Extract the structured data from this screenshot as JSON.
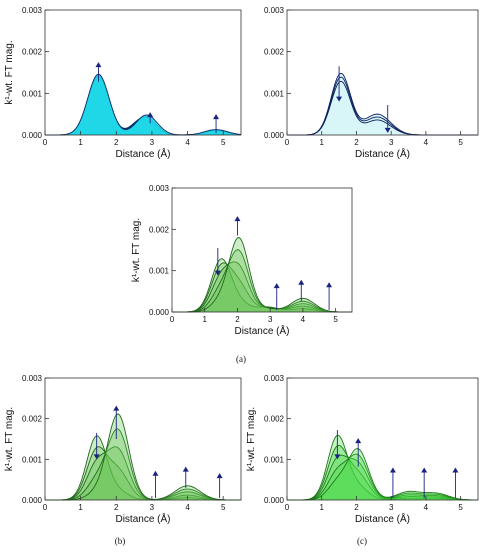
{
  "captions": {
    "a": "(a)",
    "b": "(b)",
    "c": "(c)"
  },
  "colors": {
    "axis": "#333333",
    "arrow": "#1a237e",
    "cyan_fill": "#1ed7e6",
    "cyan_edge": "#0b2d6b",
    "lightcyan_fill": "#d8f4f8",
    "lightcyan_edge": "#0b1f5c",
    "green_fill": "#5cbf4a",
    "green_edge": "#1f6a1a",
    "bright_green_fill": "#40d83a",
    "bright_green_edge": "#1d7b18"
  },
  "chart_data": [
    {
      "id": "top-left",
      "type": "area",
      "xlabel": "Distance (Å)",
      "ylabel": "k¹-wt. FT mag.",
      "xlim": [
        0,
        5.5
      ],
      "ylim": [
        0,
        0.003
      ],
      "xticks": [
        0,
        1,
        2,
        3,
        4,
        5
      ],
      "yticks": [
        "0.000",
        "0.001",
        "0.002",
        "0.003"
      ],
      "style": "cyan",
      "series": [
        {
          "peaks": [
            [
              1.5,
              0.00138,
              0.3
            ],
            [
              2.75,
              0.0004,
              0.3
            ],
            [
              4.8,
              9e-05,
              0.32
            ]
          ]
        },
        {
          "peaks": [
            [
              1.5,
              0.00142,
              0.3
            ],
            [
              2.8,
              0.00044,
              0.3
            ],
            [
              4.8,
              0.00011,
              0.32
            ]
          ]
        },
        {
          "peaks": [
            [
              1.5,
              0.00146,
              0.3
            ],
            [
              2.85,
              0.00048,
              0.3
            ],
            [
              4.8,
              0.00013,
              0.32
            ]
          ]
        }
      ],
      "arrows": [
        {
          "x": 1.5,
          "y_from": 0.00128,
          "y_to": 0.00175
        },
        {
          "x": 2.95,
          "y_from": 0.00028,
          "y_to": 0.00055
        },
        {
          "x": 4.8,
          "y_from": 5e-05,
          "y_to": 0.0005
        }
      ]
    },
    {
      "id": "top-right",
      "type": "area",
      "xlabel": "Distance (Å)",
      "ylabel": "",
      "xlim": [
        0,
        5.5
      ],
      "ylim": [
        0,
        0.003
      ],
      "xticks": [
        0,
        1,
        2,
        3,
        4,
        5
      ],
      "yticks": [
        "0.000",
        "0.001",
        "0.002",
        "0.003"
      ],
      "style": "lightcyan",
      "series": [
        {
          "peaks": [
            [
              1.55,
              0.00147,
              0.28
            ],
            [
              2.6,
              0.0005,
              0.38
            ]
          ]
        },
        {
          "peaks": [
            [
              1.55,
              0.00138,
              0.28
            ],
            [
              2.6,
              0.00043,
              0.38
            ]
          ]
        },
        {
          "peaks": [
            [
              1.55,
              0.00128,
              0.28
            ],
            [
              2.6,
              0.00036,
              0.38
            ]
          ]
        }
      ],
      "arrows": [
        {
          "x": 1.5,
          "y_from": 0.00165,
          "y_to": 0.0008
        },
        {
          "x": 2.9,
          "y_from": 0.00072,
          "y_to": 5e-05
        }
      ]
    },
    {
      "id": "middle",
      "type": "area",
      "xlabel": "Distance (Å)",
      "ylabel": "k¹-wt. FT mag.",
      "xlim": [
        0,
        5.5
      ],
      "ylim": [
        0,
        0.003
      ],
      "xticks": [
        0,
        1,
        2,
        3,
        4,
        5
      ],
      "yticks": [
        "0.000",
        "0.001",
        "0.002",
        "0.003"
      ],
      "style": "green",
      "series": [
        {
          "peaks": [
            [
              1.5,
              0.00125,
              0.3
            ],
            [
              2.05,
              0.0002,
              0.3
            ],
            [
              2.9,
              0.00012,
              0.35
            ],
            [
              4.0,
              8e-05,
              0.35
            ]
          ]
        },
        {
          "peaks": [
            [
              1.5,
              0.00105,
              0.3
            ],
            [
              2.05,
              0.0006,
              0.3
            ],
            [
              2.9,
              0.0001,
              0.35
            ],
            [
              4.0,
              0.00014,
              0.35
            ]
          ]
        },
        {
          "peaks": [
            [
              1.5,
              0.0008,
              0.3
            ],
            [
              2.05,
              0.001,
              0.3
            ],
            [
              2.9,
              9e-05,
              0.35
            ],
            [
              4.0,
              0.0002,
              0.35
            ]
          ]
        },
        {
          "peaks": [
            [
              1.5,
              0.0005,
              0.3
            ],
            [
              2.05,
              0.0014,
              0.3
            ],
            [
              2.9,
              8e-05,
              0.35
            ],
            [
              4.0,
              0.00026,
              0.35
            ]
          ]
        },
        {
          "peaks": [
            [
              1.5,
              0.00025,
              0.3
            ],
            [
              2.05,
              0.00175,
              0.3
            ],
            [
              2.9,
              8e-05,
              0.35
            ],
            [
              4.0,
              0.00033,
              0.35
            ]
          ]
        }
      ],
      "arrows": [
        {
          "x": 1.4,
          "y_from": 0.00155,
          "y_to": 0.00088
        },
        {
          "x": 2.0,
          "y_from": 0.00185,
          "y_to": 0.00232
        },
        {
          "x": 3.2,
          "y_from": 5e-05,
          "y_to": 0.0007
        },
        {
          "x": 3.95,
          "y_from": 0.00025,
          "y_to": 0.00078
        },
        {
          "x": 4.8,
          "y_from": 5e-05,
          "y_to": 0.00072
        }
      ]
    },
    {
      "id": "bottom-left",
      "type": "area",
      "xlabel": "Distance (Å)",
      "ylabel": "k¹-wt. FT mag.",
      "xlim": [
        0,
        5.5
      ],
      "ylim": [
        0,
        0.003
      ],
      "xticks": [
        0,
        1,
        2,
        3,
        4,
        5
      ],
      "yticks": [
        "0.000",
        "0.001",
        "0.002",
        "0.003"
      ],
      "style": "green",
      "series": [
        {
          "peaks": [
            [
              1.45,
              0.00155,
              0.28
            ],
            [
              2.05,
              0.0002,
              0.3
            ],
            [
              4.0,
              6e-05,
              0.35
            ]
          ]
        },
        {
          "peaks": [
            [
              1.45,
              0.0012,
              0.28
            ],
            [
              2.05,
              0.0007,
              0.3
            ],
            [
              4.0,
              0.00012,
              0.35
            ]
          ]
        },
        {
          "peaks": [
            [
              1.45,
              0.00085,
              0.28
            ],
            [
              2.05,
              0.0012,
              0.3
            ],
            [
              4.0,
              0.0002,
              0.35
            ]
          ]
        },
        {
          "peaks": [
            [
              1.45,
              0.00045,
              0.28
            ],
            [
              2.05,
              0.0017,
              0.3
            ],
            [
              4.0,
              0.00027,
              0.35
            ]
          ]
        },
        {
          "peaks": [
            [
              1.45,
              0.00015,
              0.28
            ],
            [
              2.05,
              0.0021,
              0.3
            ],
            [
              4.0,
              0.00035,
              0.35
            ]
          ]
        }
      ],
      "arrows": [
        {
          "x": 1.45,
          "y_from": 0.00165,
          "y_to": 0.001
        },
        {
          "x": 2.0,
          "y_from": 0.0015,
          "y_to": 0.00232
        },
        {
          "x": 3.1,
          "y_from": 5e-05,
          "y_to": 0.00072
        },
        {
          "x": 3.95,
          "y_from": 0.0003,
          "y_to": 0.00082
        },
        {
          "x": 4.9,
          "y_from": 5e-05,
          "y_to": 0.00066
        }
      ]
    },
    {
      "id": "bottom-right",
      "type": "area",
      "xlabel": "Distance (Å)",
      "ylabel": "k¹-wt. FT mag.",
      "xlim": [
        0,
        5.5
      ],
      "ylim": [
        0,
        0.003
      ],
      "xticks": [
        0,
        1,
        2,
        3,
        4,
        5
      ],
      "yticks": [
        "0.000",
        "0.001",
        "0.002",
        "0.003"
      ],
      "style": "bright_green",
      "series": [
        {
          "peaks": [
            [
              1.45,
              0.00155,
              0.28
            ],
            [
              2.05,
              0.0003,
              0.3
            ],
            [
              3.5,
              4e-05,
              0.35
            ],
            [
              4.3,
              4e-05,
              0.35
            ]
          ]
        },
        {
          "peaks": [
            [
              1.45,
              0.00125,
              0.28
            ],
            [
              2.05,
              0.0006,
              0.3
            ],
            [
              3.5,
              8e-05,
              0.35
            ],
            [
              4.3,
              7e-05,
              0.35
            ]
          ]
        },
        {
          "peaks": [
            [
              1.45,
              0.00095,
              0.28
            ],
            [
              2.05,
              0.00085,
              0.3
            ],
            [
              3.5,
              0.00012,
              0.35
            ],
            [
              4.3,
              0.0001,
              0.35
            ]
          ]
        },
        {
          "peaks": [
            [
              1.45,
              0.00065,
              0.28
            ],
            [
              2.05,
              0.00105,
              0.3
            ],
            [
              3.5,
              0.00016,
              0.35
            ],
            [
              4.3,
              0.00013,
              0.35
            ]
          ]
        },
        {
          "peaks": [
            [
              1.45,
              0.0004,
              0.28
            ],
            [
              2.05,
              0.00122,
              0.3
            ],
            [
              3.5,
              0.0002,
              0.35
            ],
            [
              4.3,
              0.00016,
              0.35
            ]
          ]
        }
      ],
      "arrows": [
        {
          "x": 1.45,
          "y_from": 0.00172,
          "y_to": 0.001
        },
        {
          "x": 2.05,
          "y_from": 0.00082,
          "y_to": 0.00152
        },
        {
          "x": 3.05,
          "y_from": 5e-05,
          "y_to": 0.0008
        },
        {
          "x": 3.95,
          "y_from": 5e-05,
          "y_to": 0.0008
        },
        {
          "x": 4.85,
          "y_from": 5e-05,
          "y_to": 0.0008
        }
      ]
    }
  ]
}
